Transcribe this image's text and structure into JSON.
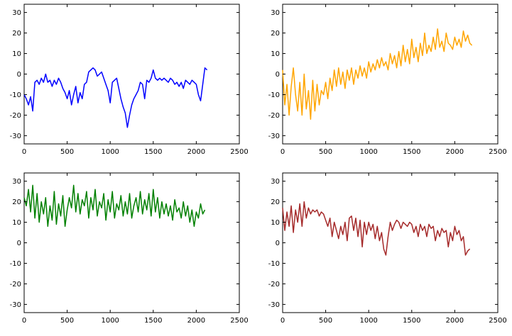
{
  "chart_data": [
    {
      "type": "line",
      "color": "#0000ff",
      "xlim": [
        0,
        2500
      ],
      "ylim": [
        -34,
        34
      ],
      "xticks": [
        "0",
        "500",
        "1000",
        "1500",
        "2000",
        "2500"
      ],
      "yticks": [
        "30",
        "20",
        "10",
        "0",
        "-10",
        "-20",
        "-30"
      ],
      "series": [
        {
          "x": [
            0,
            25,
            50,
            75,
            100,
            125,
            150,
            175,
            200,
            225,
            250,
            275,
            300,
            325,
            350,
            375,
            400,
            425,
            450,
            475,
            500,
            525,
            550,
            575,
            600,
            625,
            650,
            675,
            700,
            725,
            750,
            775,
            800,
            825,
            850,
            875,
            900,
            925,
            950,
            975,
            1000,
            1025,
            1050,
            1075,
            1100,
            1125,
            1150,
            1175,
            1200,
            1225,
            1250,
            1275,
            1300,
            1325,
            1350,
            1375,
            1400,
            1425,
            1450,
            1475,
            1500,
            1525,
            1550,
            1575,
            1600,
            1625,
            1650,
            1675,
            1700,
            1725,
            1750,
            1775,
            1800,
            1825,
            1850,
            1875,
            1900,
            1925,
            1950,
            1975,
            2000,
            2025,
            2050,
            2075,
            2100,
            2125
          ],
          "y": [
            -10,
            -12,
            -15,
            -11,
            -18,
            -4,
            -3,
            -5,
            -2,
            -4,
            0,
            -4,
            -3,
            -6,
            -3,
            -5,
            -2,
            -4,
            -7,
            -9,
            -12,
            -8,
            -15,
            -10,
            -6,
            -14,
            -9,
            -12,
            -5,
            -4,
            1,
            2,
            3,
            2,
            -1,
            0,
            1,
            -2,
            -5,
            -8,
            -14,
            -4,
            -3,
            -2,
            -7,
            -12,
            -16,
            -19,
            -26,
            -20,
            -15,
            -12,
            -10,
            -8,
            -4,
            -5,
            -12,
            -3,
            -4,
            -2,
            2,
            -2,
            -3,
            -2,
            -3,
            -2,
            -3,
            -4,
            -2,
            -3,
            -5,
            -4,
            -6,
            -4,
            -7,
            -3,
            -4,
            -5,
            -3,
            -4,
            -5,
            -10,
            -13,
            -5,
            3,
            2
          ]
        }
      ]
    },
    {
      "type": "line",
      "color": "#ffa500",
      "xlim": [
        0,
        2500
      ],
      "ylim": [
        -34,
        34
      ],
      "xticks": [
        "0",
        "500",
        "1000",
        "1500",
        "2000",
        "2500"
      ],
      "yticks": [
        "30",
        "20",
        "10",
        "0",
        "-10",
        "-20",
        "-30"
      ],
      "series": [
        {
          "x": [
            0,
            25,
            50,
            75,
            100,
            125,
            150,
            175,
            200,
            225,
            250,
            275,
            300,
            325,
            350,
            375,
            400,
            425,
            450,
            475,
            500,
            525,
            550,
            575,
            600,
            625,
            650,
            675,
            700,
            725,
            750,
            775,
            800,
            825,
            850,
            875,
            900,
            925,
            950,
            975,
            1000,
            1025,
            1050,
            1075,
            1100,
            1125,
            1150,
            1175,
            1200,
            1225,
            1250,
            1275,
            1300,
            1325,
            1350,
            1375,
            1400,
            1425,
            1450,
            1475,
            1500,
            1525,
            1550,
            1575,
            1600,
            1625,
            1650,
            1675,
            1700,
            1725,
            1750,
            1775,
            1800,
            1825,
            1850,
            1875,
            1900,
            1925,
            1950,
            1975,
            2000,
            2025,
            2050,
            2075,
            2100,
            2125,
            2150,
            2175,
            2200
          ],
          "y": [
            2,
            -15,
            -5,
            -20,
            -6,
            3,
            -10,
            -18,
            -4,
            -20,
            0,
            -17,
            -8,
            -22,
            -3,
            -18,
            -5,
            -15,
            -8,
            -10,
            -4,
            -12,
            -2,
            -8,
            2,
            -6,
            3,
            -5,
            1,
            -7,
            2,
            -3,
            3,
            -5,
            2,
            -2,
            4,
            -1,
            3,
            -2,
            6,
            1,
            5,
            2,
            7,
            3,
            8,
            4,
            6,
            2,
            10,
            5,
            9,
            3,
            11,
            4,
            14,
            6,
            12,
            5,
            17,
            8,
            13,
            6,
            15,
            9,
            20,
            10,
            14,
            11,
            18,
            12,
            22,
            13,
            16,
            11,
            20,
            15,
            14,
            12,
            18,
            14,
            17,
            13,
            21,
            16,
            19,
            15,
            14
          ]
        }
      ]
    },
    {
      "type": "line",
      "color": "#008000",
      "xlim": [
        0,
        2500
      ],
      "ylim": [
        -34,
        34
      ],
      "xticks": [
        "0",
        "500",
        "1000",
        "1500",
        "2000",
        "2500"
      ],
      "yticks": [
        "30",
        "20",
        "10",
        "0",
        "-10",
        "-20",
        "-30"
      ],
      "series": [
        {
          "x": [
            0,
            25,
            50,
            75,
            100,
            125,
            150,
            175,
            200,
            225,
            250,
            275,
            300,
            325,
            350,
            375,
            400,
            425,
            450,
            475,
            500,
            525,
            550,
            575,
            600,
            625,
            650,
            675,
            700,
            725,
            750,
            775,
            800,
            825,
            850,
            875,
            900,
            925,
            950,
            975,
            1000,
            1025,
            1050,
            1075,
            1100,
            1125,
            1150,
            1175,
            1200,
            1225,
            1250,
            1275,
            1300,
            1325,
            1350,
            1375,
            1400,
            1425,
            1450,
            1475,
            1500,
            1525,
            1550,
            1575,
            1600,
            1625,
            1650,
            1675,
            1700,
            1725,
            1750,
            1775,
            1800,
            1825,
            1850,
            1875,
            1900,
            1925,
            1950,
            1975,
            2000,
            2025,
            2050,
            2075,
            2100
          ],
          "y": [
            22,
            18,
            26,
            15,
            28,
            12,
            24,
            10,
            20,
            14,
            22,
            8,
            18,
            11,
            25,
            9,
            19,
            13,
            23,
            8,
            16,
            22,
            17,
            28,
            15,
            24,
            14,
            21,
            18,
            25,
            12,
            22,
            16,
            26,
            13,
            20,
            17,
            24,
            11,
            21,
            15,
            25,
            12,
            19,
            16,
            23,
            13,
            20,
            14,
            24,
            12,
            18,
            22,
            15,
            25,
            14,
            21,
            16,
            24,
            13,
            26,
            15,
            22,
            12,
            20,
            14,
            19,
            13,
            18,
            11,
            21,
            15,
            17,
            12,
            20,
            13,
            18,
            10,
            16,
            8,
            15,
            12,
            19,
            14,
            16
          ]
        }
      ]
    },
    {
      "type": "line",
      "color": "#a52a2a",
      "xlim": [
        0,
        2500
      ],
      "ylim": [
        -34,
        34
      ],
      "xticks": [
        "0",
        "500",
        "1000",
        "1500",
        "2000",
        "2500"
      ],
      "yticks": [
        "30",
        "20",
        "10",
        "0",
        "-10",
        "-20",
        "-30"
      ],
      "series": [
        {
          "x": [
            0,
            25,
            50,
            75,
            100,
            125,
            150,
            175,
            200,
            225,
            250,
            275,
            300,
            325,
            350,
            375,
            400,
            425,
            450,
            475,
            500,
            525,
            550,
            575,
            600,
            625,
            650,
            675,
            700,
            725,
            750,
            775,
            800,
            825,
            850,
            875,
            900,
            925,
            950,
            975,
            1000,
            1025,
            1050,
            1075,
            1100,
            1125,
            1150,
            1175,
            1200,
            1225,
            1250,
            1275,
            1300,
            1325,
            1350,
            1375,
            1400,
            1425,
            1450,
            1475,
            1500,
            1525,
            1550,
            1575,
            1600,
            1625,
            1650,
            1675,
            1700,
            1725,
            1750,
            1775,
            1800,
            1825,
            1850,
            1875,
            1900,
            1925,
            1950,
            1975,
            2000,
            2025,
            2050,
            2075,
            2100,
            2125,
            2150,
            2175
          ],
          "y": [
            17,
            6,
            15,
            8,
            18,
            5,
            16,
            10,
            19,
            8,
            20,
            12,
            17,
            14,
            16,
            15,
            16,
            13,
            15,
            14,
            11,
            8,
            12,
            3,
            10,
            6,
            2,
            8,
            4,
            10,
            1,
            12,
            13,
            6,
            12,
            3,
            11,
            -2,
            10,
            4,
            10,
            6,
            9,
            2,
            8,
            1,
            5,
            -3,
            -6,
            3,
            10,
            6,
            9,
            11,
            10,
            7,
            10,
            9,
            8,
            10,
            9,
            5,
            8,
            3,
            9,
            6,
            8,
            3,
            9,
            7,
            8,
            1,
            6,
            3,
            7,
            5,
            6,
            -2,
            5,
            1,
            8,
            4,
            6,
            1,
            3,
            -6,
            -4,
            -3
          ]
        }
      ]
    }
  ]
}
